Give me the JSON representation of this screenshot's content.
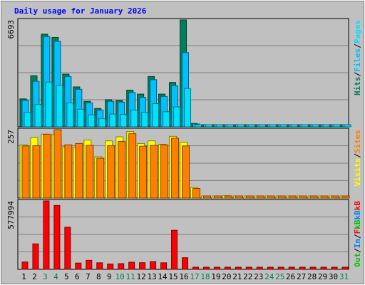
{
  "colors": {
    "background": "#C0C0C0",
    "plot_bg": "#C0C0C0",
    "grid": "#808080",
    "title": "#0000FF",
    "hits": "#00805C",
    "files": "#00C0FF",
    "pages": "#00E0FF",
    "visits": "#FFFF00",
    "sites": "#FF8000",
    "kbf": "#FF0000",
    "kbin": "#0080FF",
    "kbout": "#00C000",
    "weekend": "#00805C",
    "weekday": "#000000"
  },
  "chart_data": {
    "type": "bar",
    "title": "Daily usage for January 2026",
    "days": [
      "1",
      "2",
      "3",
      "4",
      "5",
      "6",
      "7",
      "8",
      "9",
      "10",
      "11",
      "12",
      "13",
      "14",
      "15",
      "16",
      "17",
      "18",
      "19",
      "20",
      "21",
      "22",
      "23",
      "24",
      "25",
      "26",
      "27",
      "28",
      "29",
      "30",
      "31"
    ],
    "weekend_days": [
      "3",
      "4",
      "10",
      "11",
      "17",
      "18",
      "24",
      "25",
      "31"
    ],
    "panels": [
      {
        "id": "hits",
        "max_label": "6693",
        "max": 6693,
        "legend": [
          {
            "text": "Hits",
            "color_key": "hits"
          },
          {
            "text": "/",
            "color_key": "weekday"
          },
          {
            "text": "Files",
            "color_key": "files"
          },
          {
            "text": "/",
            "color_key": "weekday"
          },
          {
            "text": "Pages",
            "color_key": "pages"
          }
        ],
        "series": [
          {
            "name": "Hits",
            "color_key": "hits",
            "values": [
              1750,
              3200,
              5800,
              5600,
              3300,
              2500,
              1600,
              1150,
              1700,
              1650,
              2300,
              2050,
              3150,
              2050,
              2780,
              6693,
              210,
              0,
              0,
              0,
              0,
              0,
              0,
              0,
              0,
              0,
              0,
              0,
              0,
              0,
              0
            ]
          },
          {
            "name": "Files",
            "color_key": "files",
            "values": [
              1650,
              2850,
              5650,
              5350,
              3150,
              2350,
              1500,
              1050,
              1600,
              1550,
              2150,
              1850,
              2950,
              1900,
              2580,
              4650,
              180,
              0,
              0,
              0,
              0,
              0,
              0,
              0,
              0,
              0,
              0,
              0,
              0,
              0,
              0
            ]
          },
          {
            "name": "Pages",
            "color_key": "pages",
            "values": [
              900,
              1400,
              2800,
              2600,
              1500,
              1100,
              750,
              520,
              800,
              780,
              1050,
              900,
              1450,
              950,
              1250,
              2400,
              80,
              0,
              0,
              0,
              0,
              0,
              0,
              0,
              0,
              0,
              0,
              0,
              0,
              0,
              0
            ]
          }
        ]
      },
      {
        "id": "visits",
        "max_label": "257",
        "max": 257,
        "legend": [
          {
            "text": "Visits",
            "color_key": "visits"
          },
          {
            "text": "/",
            "color_key": "weekday"
          },
          {
            "text": "Sites",
            "color_key": "sites"
          }
        ],
        "series": [
          {
            "name": "Visits",
            "color_key": "visits",
            "values": [
              200,
              228,
              240,
              238,
              193,
              190,
              218,
              155,
              215,
              230,
              250,
              205,
              215,
              202,
              232,
              210,
              40,
              8,
              3,
              9,
              7,
              8,
              6,
              7,
              6,
              6,
              8,
              7,
              5,
              5,
              5
            ]
          },
          {
            "name": "Sites",
            "color_key": "sites",
            "values": [
              196,
              197,
              240,
              257,
              200,
              205,
              198,
              150,
              197,
              213,
              242,
              195,
              198,
              200,
              225,
              196,
              36,
              7,
              2,
              8,
              6,
              7,
              5,
              6,
              5,
              5,
              7,
              6,
              4,
              4,
              4
            ]
          }
        ]
      },
      {
        "id": "kb",
        "max_label": "577994",
        "max": 577994,
        "legend": [
          {
            "text": "Out",
            "color_key": "kbout"
          },
          {
            "text": "/",
            "color_key": "weekday"
          },
          {
            "text": "In",
            "color_key": "kbin"
          },
          {
            "text": "/",
            "color_key": "weekday"
          },
          {
            "text": "F",
            "color_key": "kbf"
          },
          {
            "text": "kB",
            "color_key": "kbout"
          },
          {
            "text": "kB",
            "color_key": "kbin"
          },
          {
            "text": "kB",
            "color_key": "kbf"
          }
        ],
        "series": [
          {
            "name": "kB F",
            "color_key": "kbf",
            "values": [
              62000,
              215000,
              577994,
              540000,
              356000,
              53000,
              76000,
              55000,
              45000,
              48000,
              60000,
              56000,
              65000,
              55000,
              330000,
              98000,
              6000,
              3000,
              2000,
              2500,
              2200,
              2500,
              2000,
              2300,
              2100,
              2000,
              2200,
              2100,
              1800,
              1800,
              1800
            ]
          }
        ]
      }
    ]
  }
}
